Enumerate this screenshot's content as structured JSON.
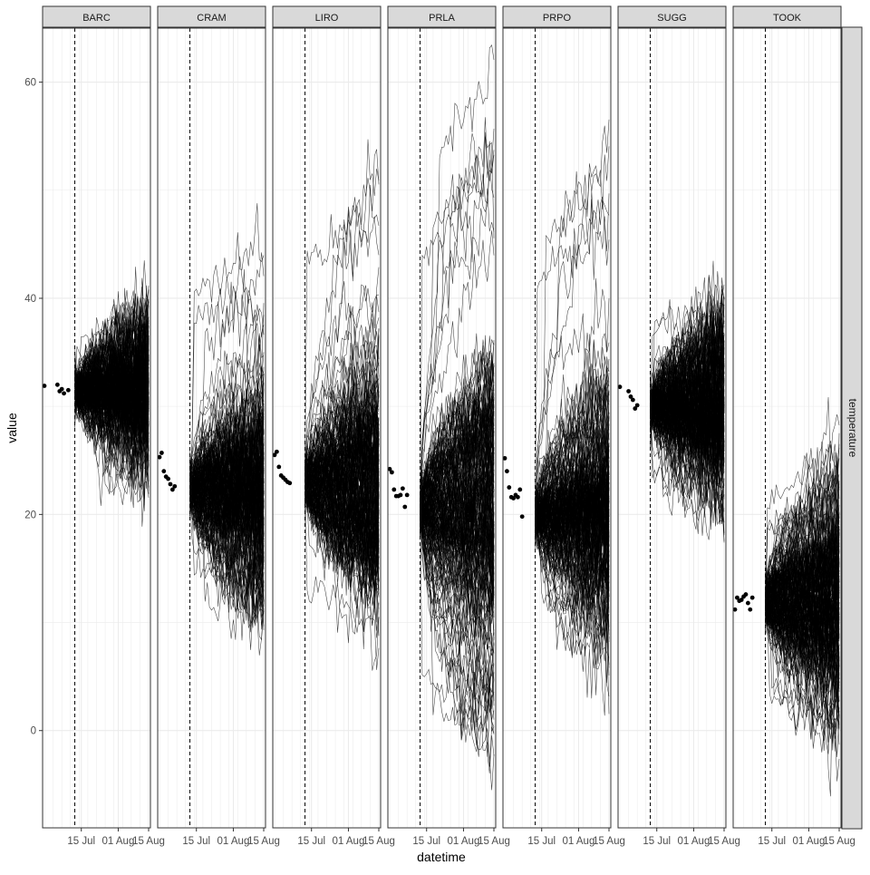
{
  "chart_data": {
    "type": "line",
    "xlabel": "datetime",
    "ylabel": "value",
    "strip_right": "temperature",
    "ylim": [
      -9,
      65
    ],
    "y_ticks": [
      0,
      20,
      40,
      60
    ],
    "y_tick_labels": [
      "0",
      "20",
      "40",
      "60"
    ],
    "x_range": [
      "2023-06-28",
      "2023-08-15"
    ],
    "x_ticks": [
      "2023-07-15",
      "2023-08-01",
      "2023-08-15"
    ],
    "x_tick_labels": [
      "15 Jul",
      "01 Aug",
      "15 Aug"
    ],
    "forecast_start": "2023-07-12",
    "ensemble_members": 200,
    "facets": [
      {
        "site": "BARC",
        "observed": [
          {
            "date": "2023-06-28",
            "value": 31.9
          },
          {
            "date": "2023-07-04",
            "value": 32.0
          },
          {
            "date": "2023-07-05",
            "value": 31.4
          },
          {
            "date": "2023-07-06",
            "value": 31.6
          },
          {
            "date": "2023-07-07",
            "value": 31.2
          },
          {
            "date": "2023-07-09",
            "value": 31.5
          }
        ],
        "forecast_start_value": 31.5,
        "forecast_end_mean": 31.5,
        "forecast_end_spread": [
          22,
          38
        ]
      },
      {
        "site": "CRAM",
        "observed": [
          {
            "date": "2023-06-28",
            "value": 25.3
          },
          {
            "date": "2023-06-29",
            "value": 25.7
          },
          {
            "date": "2023-06-30",
            "value": 24.0
          },
          {
            "date": "2023-07-01",
            "value": 23.5
          },
          {
            "date": "2023-07-02",
            "value": 23.3
          },
          {
            "date": "2023-07-03",
            "value": 22.8
          },
          {
            "date": "2023-07-04",
            "value": 22.3
          },
          {
            "date": "2023-07-05",
            "value": 22.6
          }
        ],
        "forecast_start_value": 22.5,
        "forecast_end_mean": 22.0,
        "forecast_end_spread": [
          10,
          46
        ]
      },
      {
        "site": "LIRO",
        "observed": [
          {
            "date": "2023-06-28",
            "value": 25.5
          },
          {
            "date": "2023-06-29",
            "value": 25.8
          },
          {
            "date": "2023-06-30",
            "value": 24.4
          },
          {
            "date": "2023-07-01",
            "value": 23.6
          },
          {
            "date": "2023-07-02",
            "value": 23.4
          },
          {
            "date": "2023-07-03",
            "value": 23.2
          },
          {
            "date": "2023-07-04",
            "value": 23.0
          },
          {
            "date": "2023-07-05",
            "value": 22.9
          }
        ],
        "forecast_start_value": 23.0,
        "forecast_end_mean": 23.0,
        "forecast_end_spread": [
          8,
          53
        ]
      },
      {
        "site": "PRLA",
        "observed": [
          {
            "date": "2023-06-28",
            "value": 24.2
          },
          {
            "date": "2023-06-29",
            "value": 23.9
          },
          {
            "date": "2023-06-30",
            "value": 22.3
          },
          {
            "date": "2023-07-01",
            "value": 21.7
          },
          {
            "date": "2023-07-02",
            "value": 21.7
          },
          {
            "date": "2023-07-03",
            "value": 21.8
          },
          {
            "date": "2023-07-04",
            "value": 22.4
          },
          {
            "date": "2023-07-05",
            "value": 20.7
          },
          {
            "date": "2023-07-06",
            "value": 21.8
          }
        ],
        "forecast_start_value": 20.5,
        "forecast_end_mean": 21.0,
        "forecast_end_spread": [
          -2,
          62
        ]
      },
      {
        "site": "PRPO",
        "observed": [
          {
            "date": "2023-06-28",
            "value": 25.2
          },
          {
            "date": "2023-06-29",
            "value": 24.0
          },
          {
            "date": "2023-06-30",
            "value": 22.5
          },
          {
            "date": "2023-07-01",
            "value": 21.6
          },
          {
            "date": "2023-07-02",
            "value": 21.5
          },
          {
            "date": "2023-07-03",
            "value": 21.8
          },
          {
            "date": "2023-07-04",
            "value": 21.6
          },
          {
            "date": "2023-07-05",
            "value": 22.3
          },
          {
            "date": "2023-07-06",
            "value": 19.8
          }
        ],
        "forecast_start_value": 19.8,
        "forecast_end_mean": 20.0,
        "forecast_end_spread": [
          4,
          54
        ]
      },
      {
        "site": "SUGG",
        "observed": [
          {
            "date": "2023-06-28",
            "value": 31.8
          },
          {
            "date": "2023-07-02",
            "value": 31.4
          },
          {
            "date": "2023-07-03",
            "value": 30.9
          },
          {
            "date": "2023-07-04",
            "value": 30.6
          },
          {
            "date": "2023-07-05",
            "value": 29.8
          },
          {
            "date": "2023-07-06",
            "value": 30.1
          }
        ],
        "forecast_start_value": 30.0,
        "forecast_end_mean": 30.0,
        "forecast_end_spread": [
          19,
          40
        ]
      },
      {
        "site": "TOOK",
        "observed": [
          {
            "date": "2023-06-28",
            "value": 11.2
          },
          {
            "date": "2023-06-29",
            "value": 12.3
          },
          {
            "date": "2023-06-30",
            "value": 12.0
          },
          {
            "date": "2023-07-01",
            "value": 12.1
          },
          {
            "date": "2023-07-02",
            "value": 12.4
          },
          {
            "date": "2023-07-03",
            "value": 12.6
          },
          {
            "date": "2023-07-04",
            "value": 11.8
          },
          {
            "date": "2023-07-05",
            "value": 11.2
          },
          {
            "date": "2023-07-06",
            "value": 12.3
          }
        ],
        "forecast_start_value": 12.0,
        "forecast_end_mean": 12.0,
        "forecast_end_spread": [
          -2,
          25
        ]
      }
    ],
    "grid": true,
    "legend": "none",
    "colors": {
      "line": "#000000",
      "point": "#000000",
      "strip_fill": "#d9d9d9",
      "grid": "#ebebeb",
      "panel_border": "#333333"
    }
  }
}
